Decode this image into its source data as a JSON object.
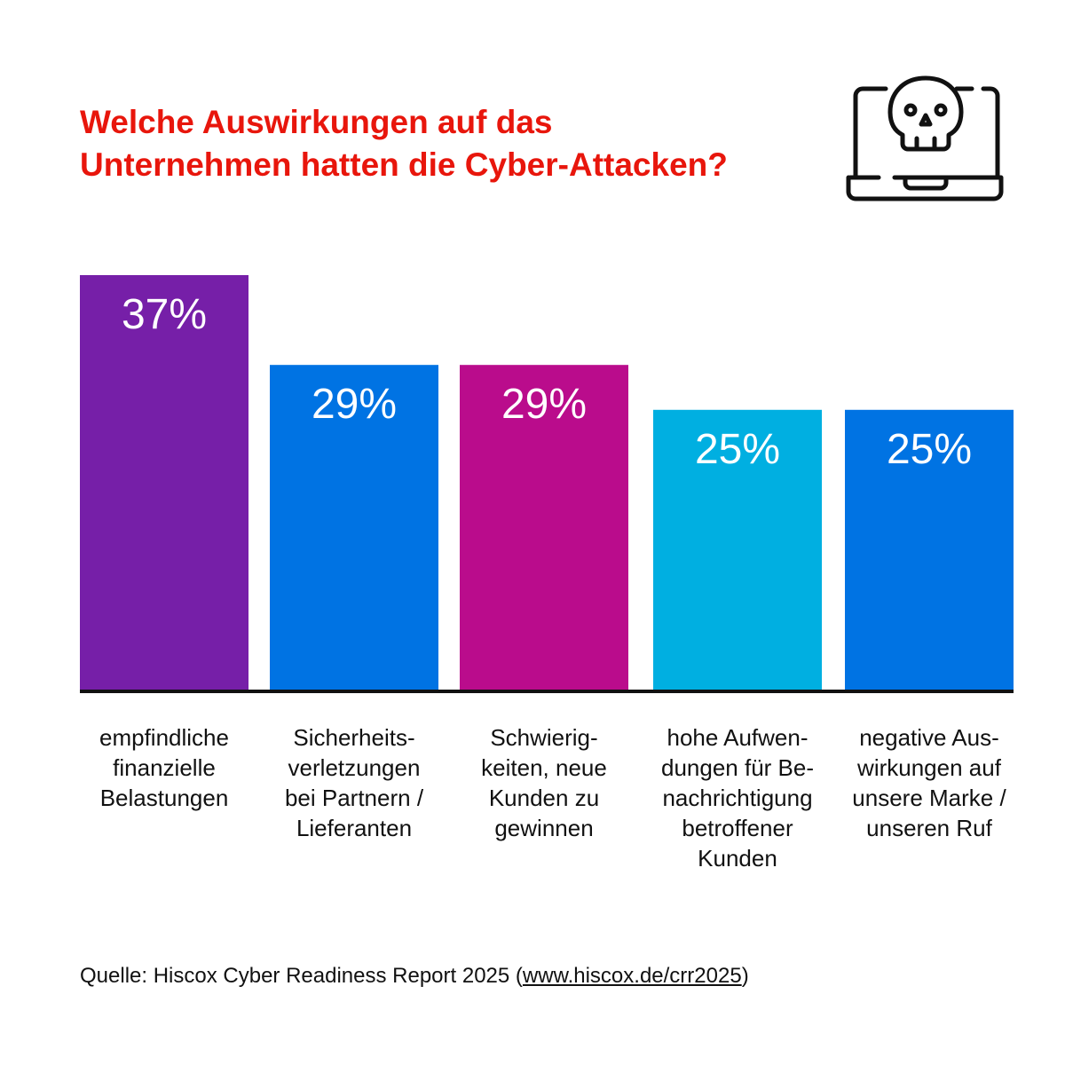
{
  "title_lines": [
    "Welche Auswirkungen auf das",
    "Unternehmen hatten die Cyber-Attacken?"
  ],
  "icon": "laptop-skull-icon",
  "colors": {
    "title": "#e8160c",
    "axis": "#111111",
    "label": "#ffffff"
  },
  "chart_data": {
    "type": "bar",
    "title": "Welche Auswirkungen auf das Unternehmen hatten die Cyber-Attacken?",
    "categories": [
      [
        "empfindliche",
        "finanzielle",
        "Belastungen"
      ],
      [
        "Sicherheits-",
        "verletzungen",
        "bei Partnern /",
        "Lieferanten"
      ],
      [
        "Schwierig-",
        "keiten, neue",
        "Kunden zu",
        "gewinnen"
      ],
      [
        "hohe Aufwen-",
        "dungen für Be-",
        "nachrichtigung",
        "betroffener",
        "Kunden"
      ],
      [
        "negative Aus-",
        "wirkungen auf",
        "unsere Marke /",
        "unseren Ruf"
      ]
    ],
    "values": [
      37,
      29,
      29,
      25,
      25
    ],
    "value_labels": [
      "37%",
      "29%",
      "29%",
      "25%",
      "25%"
    ],
    "bar_colors": [
      "#761fa8",
      "#0073e3",
      "#ba0c8c",
      "#00afe1",
      "#0073e3"
    ],
    "unit": "%",
    "ylim": [
      0,
      37
    ],
    "grid": false
  },
  "source": {
    "prefix": "Quelle: Hiscox Cyber Readiness Report 2025 (",
    "link": "www.hiscox.de/crr2025",
    "suffix": ")"
  }
}
